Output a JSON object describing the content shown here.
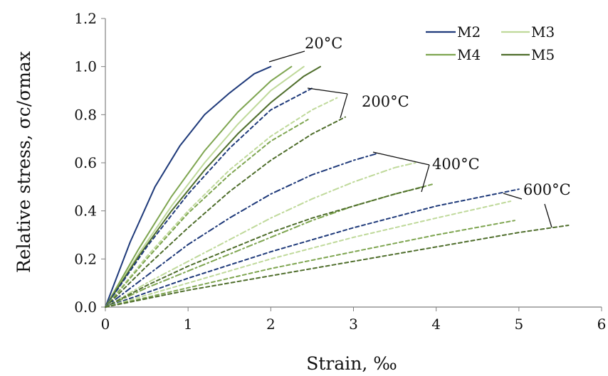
{
  "chart_data": {
    "type": "line",
    "title": "",
    "xlabel": "Strain, ‰",
    "ylabel": "Relative stress, σc/σmax",
    "xlim": [
      0,
      6
    ],
    "ylim": [
      0,
      1.2
    ],
    "xticks": [
      "0",
      "1",
      "2",
      "3",
      "4",
      "5",
      "6"
    ],
    "yticks": [
      "0.0",
      "0.2",
      "0.4",
      "0.6",
      "0.8",
      "1.0",
      "1.2"
    ],
    "grid": false,
    "legend": {
      "placement": "top-right",
      "entries": [
        "M2",
        "M3",
        "M4",
        "M5"
      ]
    },
    "colors": {
      "M2": "#1f3a7a",
      "M3": "#bfd99a",
      "M4": "#7ea550",
      "M5": "#4f6e2c"
    },
    "temperature_labels": [
      "20°C",
      "200°C",
      "400°C",
      "600°C"
    ],
    "series": [
      {
        "name": "M2",
        "temperature": "20°C",
        "style": "solid",
        "x": [
          0,
          0.3,
          0.6,
          0.9,
          1.2,
          1.5,
          1.8,
          2.0
        ],
        "y": [
          0,
          0.27,
          0.5,
          0.67,
          0.8,
          0.89,
          0.97,
          1.0
        ]
      },
      {
        "name": "M3",
        "temperature": "20°C",
        "style": "solid",
        "x": [
          0,
          0.4,
          0.8,
          1.2,
          1.6,
          2.0,
          2.4
        ],
        "y": [
          0,
          0.22,
          0.42,
          0.6,
          0.76,
          0.9,
          1.0
        ]
      },
      {
        "name": "M4",
        "temperature": "20°C",
        "style": "solid",
        "x": [
          0,
          0.4,
          0.8,
          1.2,
          1.6,
          2.0,
          2.25
        ],
        "y": [
          0,
          0.24,
          0.46,
          0.65,
          0.81,
          0.94,
          1.0
        ]
      },
      {
        "name": "M5",
        "temperature": "20°C",
        "style": "solid",
        "x": [
          0,
          0.4,
          0.8,
          1.2,
          1.6,
          2.0,
          2.4,
          2.6
        ],
        "y": [
          0,
          0.21,
          0.4,
          0.57,
          0.72,
          0.85,
          0.96,
          1.0
        ]
      },
      {
        "name": "M2",
        "temperature": "200°C",
        "style": "dashed",
        "x": [
          0,
          0.5,
          1.0,
          1.5,
          2.0,
          2.5
        ],
        "y": [
          0,
          0.25,
          0.47,
          0.66,
          0.82,
          0.91
        ]
      },
      {
        "name": "M3",
        "temperature": "200°C",
        "style": "dashed",
        "x": [
          0,
          0.5,
          1.0,
          1.5,
          2.0,
          2.5,
          2.8
        ],
        "y": [
          0,
          0.21,
          0.4,
          0.57,
          0.71,
          0.82,
          0.87
        ]
      },
      {
        "name": "M4",
        "temperature": "200°C",
        "style": "dashed",
        "x": [
          0,
          0.5,
          1.0,
          1.5,
          2.0,
          2.45
        ],
        "y": [
          0,
          0.2,
          0.39,
          0.55,
          0.69,
          0.78
        ]
      },
      {
        "name": "M5",
        "temperature": "200°C",
        "style": "dashed",
        "x": [
          0,
          0.5,
          1.0,
          1.5,
          2.0,
          2.5,
          2.9
        ],
        "y": [
          0,
          0.17,
          0.33,
          0.48,
          0.61,
          0.72,
          0.79
        ]
      },
      {
        "name": "M2",
        "temperature": "400°C",
        "style": "dash-dot",
        "x": [
          0,
          0.5,
          1.0,
          1.5,
          2.0,
          2.5,
          3.0,
          3.3
        ],
        "y": [
          0,
          0.13,
          0.26,
          0.37,
          0.47,
          0.55,
          0.61,
          0.64
        ]
      },
      {
        "name": "M3",
        "temperature": "400°C",
        "style": "dash-dot",
        "x": [
          0,
          0.5,
          1.0,
          1.5,
          2.0,
          2.5,
          3.0,
          3.5,
          3.75
        ],
        "y": [
          0,
          0.1,
          0.19,
          0.28,
          0.37,
          0.45,
          0.52,
          0.58,
          0.6
        ]
      },
      {
        "name": "M4",
        "temperature": "400°C",
        "style": "dash-dot",
        "x": [
          0,
          0.5,
          1.0,
          1.5,
          2.0,
          2.5,
          3.0,
          3.5,
          3.95
        ],
        "y": [
          0,
          0.08,
          0.15,
          0.22,
          0.29,
          0.36,
          0.42,
          0.47,
          0.51
        ]
      },
      {
        "name": "M5",
        "temperature": "400°C",
        "style": "dashed",
        "x": [
          0,
          0.5,
          1.0,
          1.5,
          2.0,
          2.5,
          3.0,
          3.5,
          3.85
        ],
        "y": [
          0,
          0.09,
          0.17,
          0.24,
          0.31,
          0.37,
          0.42,
          0.47,
          0.5
        ]
      },
      {
        "name": "M2",
        "temperature": "600°C",
        "style": "dashed",
        "x": [
          0,
          1,
          2,
          3,
          4,
          5
        ],
        "y": [
          0,
          0.12,
          0.23,
          0.33,
          0.42,
          0.49
        ]
      },
      {
        "name": "M3",
        "temperature": "600°C",
        "style": "dashed",
        "x": [
          0,
          1,
          2,
          3,
          4,
          4.9
        ],
        "y": [
          0,
          0.1,
          0.2,
          0.29,
          0.37,
          0.44
        ]
      },
      {
        "name": "M4",
        "temperature": "600°C",
        "style": "dashed",
        "x": [
          0,
          1,
          2,
          3,
          4,
          4.95
        ],
        "y": [
          0,
          0.08,
          0.16,
          0.23,
          0.3,
          0.36
        ]
      },
      {
        "name": "M5",
        "temperature": "600°C",
        "style": "dashed",
        "x": [
          0,
          1,
          2,
          3,
          4,
          5,
          5.6
        ],
        "y": [
          0,
          0.07,
          0.13,
          0.19,
          0.25,
          0.31,
          0.34
        ]
      }
    ],
    "annotations": [
      {
        "text": "20°C",
        "anchor": [
          2.0,
          1.02
        ]
      },
      {
        "text": "200°C",
        "anchor": [
          2.5,
          0.92
        ]
      },
      {
        "text": "400°C",
        "anchor": [
          3.3,
          0.65
        ]
      },
      {
        "text": "600°C",
        "anchor": [
          5.0,
          0.49
        ]
      }
    ]
  }
}
